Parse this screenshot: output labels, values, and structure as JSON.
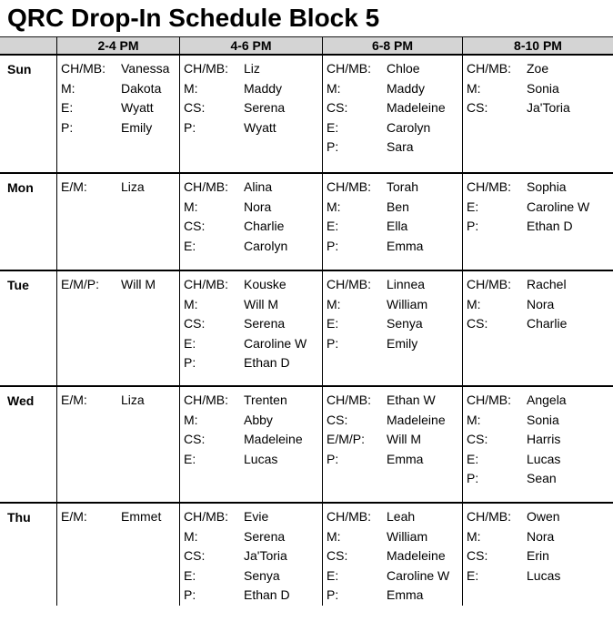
{
  "title": "QRC Drop-In Schedule Block 5",
  "colors": {
    "header_bg": "#d4d4d4",
    "border": "#000000",
    "text": "#000000"
  },
  "table": {
    "time_headers": [
      "2-4 PM",
      "4-6 PM",
      "6-8 PM",
      "8-10 PM"
    ],
    "rows": [
      {
        "day": "Sun",
        "cells": [
          [
            [
              "CH/MB:",
              "Vanessa"
            ],
            [
              "M:",
              "Dakota"
            ],
            [
              "E:",
              "Wyatt"
            ],
            [
              "P:",
              "Emily"
            ]
          ],
          [
            [
              "CH/MB:",
              "Liz"
            ],
            [
              "M:",
              "Maddy"
            ],
            [
              "CS:",
              "Serena"
            ],
            [
              "P:",
              "Wyatt"
            ]
          ],
          [
            [
              "CH/MB:",
              "Chloe"
            ],
            [
              "M:",
              "Maddy"
            ],
            [
              "CS:",
              "Madeleine"
            ],
            [
              "E:",
              "Carolyn"
            ],
            [
              "P:",
              "Sara"
            ]
          ],
          [
            [
              "CH/MB:",
              "Zoe"
            ],
            [
              "M:",
              "Sonia"
            ],
            [
              "CS:",
              "Ja'Toria"
            ]
          ]
        ]
      },
      {
        "day": "Mon",
        "cells": [
          [
            [
              "E/M:",
              "Liza"
            ]
          ],
          [
            [
              "CH/MB:",
              "Alina"
            ],
            [
              "M:",
              "Nora"
            ],
            [
              "CS:",
              "Charlie"
            ],
            [
              "E:",
              "Carolyn"
            ]
          ],
          [
            [
              "CH/MB:",
              "Torah"
            ],
            [
              "M:",
              "Ben"
            ],
            [
              "E:",
              "Ella"
            ],
            [
              "P:",
              "Emma"
            ]
          ],
          [
            [
              "CH/MB:",
              "Sophia"
            ],
            [
              "E:",
              "Caroline W"
            ],
            [
              "P:",
              "Ethan D"
            ]
          ]
        ]
      },
      {
        "day": "Tue",
        "cells": [
          [
            [
              "E/M/P:",
              "Will M"
            ]
          ],
          [
            [
              "CH/MB:",
              "Kouske"
            ],
            [
              "M:",
              "Will M"
            ],
            [
              "CS:",
              "Serena"
            ],
            [
              "E:",
              "Caroline W"
            ],
            [
              "P:",
              "Ethan D"
            ]
          ],
          [
            [
              "CH/MB:",
              "Linnea"
            ],
            [
              "M:",
              "William"
            ],
            [
              "E:",
              "Senya"
            ],
            [
              "P:",
              "Emily"
            ]
          ],
          [
            [
              "CH/MB:",
              "Rachel"
            ],
            [
              "M:",
              "Nora"
            ],
            [
              "CS:",
              "Charlie"
            ]
          ]
        ]
      },
      {
        "day": "Wed",
        "cells": [
          [
            [
              "E/M:",
              "Liza"
            ]
          ],
          [
            [
              "CH/MB:",
              "Trenten"
            ],
            [
              "M:",
              "Abby"
            ],
            [
              "CS:",
              "Madeleine"
            ],
            [
              "E:",
              "Lucas"
            ]
          ],
          [
            [
              "CH/MB:",
              "Ethan W"
            ],
            [
              "CS:",
              "Madeleine"
            ],
            [
              "E/M/P:",
              "Will M"
            ],
            [
              "P:",
              "Emma"
            ]
          ],
          [
            [
              "CH/MB:",
              "Angela"
            ],
            [
              "M:",
              "Sonia"
            ],
            [
              "CS:",
              "Harris"
            ],
            [
              "E:",
              "Lucas"
            ],
            [
              "P:",
              "Sean"
            ]
          ]
        ]
      },
      {
        "day": "Thu",
        "cells": [
          [
            [
              "E/M:",
              "Emmet"
            ]
          ],
          [
            [
              "CH/MB:",
              "Evie"
            ],
            [
              "M:",
              "Serena"
            ],
            [
              "CS:",
              "Ja'Toria"
            ],
            [
              "E:",
              "Senya"
            ],
            [
              "P:",
              "Ethan D"
            ]
          ],
          [
            [
              "CH/MB:",
              "Leah"
            ],
            [
              "M:",
              "William"
            ],
            [
              "CS:",
              "Madeleine"
            ],
            [
              "E:",
              "Caroline W"
            ],
            [
              "P:",
              "Emma"
            ]
          ],
          [
            [
              "CH/MB:",
              "Owen"
            ],
            [
              "M:",
              "Nora"
            ],
            [
              "CS:",
              "Erin"
            ],
            [
              "E:",
              "Lucas"
            ]
          ]
        ]
      }
    ]
  }
}
